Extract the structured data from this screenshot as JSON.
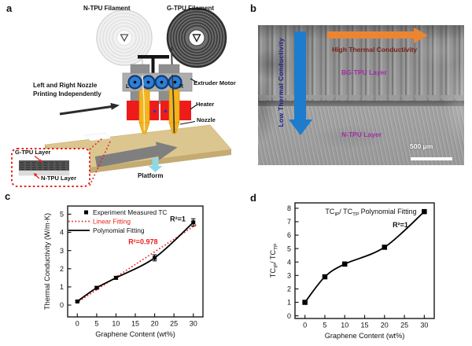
{
  "figure": {
    "panel_a": {
      "label": "a",
      "left_spool_label": "N-TPU Filament",
      "right_spool_label": "G-TPU Filament",
      "note_line1": "Left and Right Nozzle",
      "note_line2": "Printing Independently",
      "motor_left_marker": "L",
      "motor_right_marker": "R",
      "extruder_label": "Extruder Motor",
      "heater_label": "Heater",
      "nozzle_label": "Nozzle",
      "platform_label": "Platform",
      "inset_top_layer_label": "G-TPU Layer",
      "inset_bottom_layer_label": "N-TPU Layer"
    },
    "panel_b": {
      "label": "b",
      "vertical_arrow_text": "Low Thermal Conductivity",
      "horizontal_arrow_text": "High Thermal Conductivity",
      "upper_layer_label": "BG-TPU Layer",
      "lower_layer_label": "N-TPU Layer",
      "scale_bar_label": "500 μm",
      "colors": {
        "down_arrow": "#1e7ccc",
        "right_arrow": "#ec8532",
        "low_tc_text": "#1c1c8e",
        "high_tc_text": "#7c1d15",
        "layer_text": "#a02ba6"
      }
    },
    "panel_c": {
      "label": "c"
    },
    "panel_d": {
      "label": "d"
    }
  },
  "chart_data": [
    {
      "id": "chart-c",
      "type": "scatter",
      "xlabel": "Graphene Content (wt%)",
      "ylabel": "Thermal Conductivity (W/m·K)",
      "x": [
        0,
        5,
        10,
        20,
        30
      ],
      "y": [
        0.2,
        0.95,
        1.5,
        2.6,
        4.55
      ],
      "yerr": [
        0.05,
        0.08,
        0.08,
        0.17,
        0.2
      ],
      "xticks": [
        0,
        5,
        10,
        15,
        20,
        25,
        30
      ],
      "yticks": [
        0,
        1,
        2,
        3,
        4,
        5
      ],
      "xlim": [
        -2.5,
        32.5
      ],
      "ylim": [
        -0.65,
        5.45
      ],
      "grid": false,
      "marker": "square",
      "marker_size": 5,
      "marker_color": "#000000",
      "spline_color": "#000000",
      "linear_fit": {
        "slope": 0.139,
        "intercept": 0.15,
        "x_start": -0.3,
        "x_end": 30.8,
        "color": "#e8211d"
      },
      "legend_position": "top-left",
      "legend": [
        {
          "label": "Experiment Measured TC",
          "kind": "marker",
          "color": "#000000",
          "label_color": "#111111"
        },
        {
          "label": "Linear Fitting",
          "kind": "dotted",
          "color": "#e8211d",
          "label_color": "#e8211d"
        },
        {
          "label": "Polynomial Fitting",
          "kind": "solid",
          "color": "#000000",
          "label_color": "#111111"
        }
      ],
      "annotations": [
        {
          "text": "R²=0.978",
          "x": 17,
          "y": 3.35,
          "color": "#e8211d"
        },
        {
          "text": "R²=1",
          "x": 26,
          "y": 4.6,
          "color": "#111111"
        }
      ]
    },
    {
      "id": "chart-d",
      "type": "scatter",
      "title_segments": [
        {
          "t": "TC"
        },
        {
          "t": "IP",
          "sub": true
        },
        {
          "t": "/ TC"
        },
        {
          "t": "TP",
          "sub": true
        },
        {
          "t": " Polynomial Fitting"
        }
      ],
      "xlabel": "Graphene Content (wt%)",
      "ylabel_segments": [
        {
          "t": "TC"
        },
        {
          "t": "IP",
          "sub": true
        },
        {
          "t": "/ TC"
        },
        {
          "t": "TP",
          "sub": true
        }
      ],
      "x": [
        0,
        5,
        10,
        20,
        30
      ],
      "y": [
        1.0,
        2.9,
        3.85,
        5.1,
        7.75
      ],
      "xticks": [
        0,
        5,
        10,
        15,
        20,
        25,
        30
      ],
      "yticks": [
        0,
        1,
        2,
        3,
        4,
        5,
        6,
        7,
        8
      ],
      "xlim": [
        -2.5,
        32.5
      ],
      "ylim": [
        -0.2,
        8.4
      ],
      "grid": false,
      "marker": "square",
      "marker_size": 6.5,
      "marker_color": "#000000",
      "spline_color": "#000000",
      "annotations": [
        {
          "text": "R²=1",
          "x": 24,
          "y": 6.6,
          "color": "#111111"
        }
      ]
    }
  ]
}
